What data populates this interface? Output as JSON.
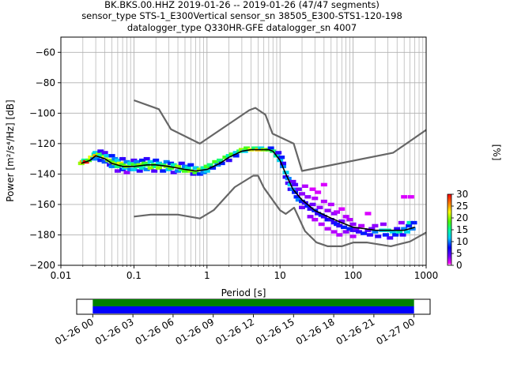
{
  "figure": {
    "title_lines": [
      "BK.BKS.00.HHZ   2019-01-26 -- 2019-01-26  (47/47 segments)",
      "sensor_type STS-1_E300Vertical sensor_sn 38505_E300-STS1-120-198",
      "datalogger_type Q330HR-GFE datalogger_sn 4007"
    ]
  },
  "chart_data": [
    {
      "type": "heatmap",
      "subtype": "probabilistic-power-spectral-density",
      "xlabel": "Period [s]",
      "ylabel": "Power [m²/s⁴/Hz] [dB]",
      "xscale": "log",
      "xlim": [
        0.01,
        1000
      ],
      "ylim": [
        -200,
        -50
      ],
      "x_ticks": [
        0.01,
        0.1,
        1,
        10,
        100,
        1000
      ],
      "x_tick_labels": [
        "0.01",
        "0.1",
        "1",
        "10",
        "100",
        "1000"
      ],
      "y_ticks": [
        -200,
        -180,
        -160,
        -140,
        -120,
        -100,
        -80,
        -60
      ],
      "y_tick_labels": [
        "−200",
        "−180",
        "−160",
        "−140",
        "−120",
        "−100",
        "−80",
        "−60"
      ],
      "grid": true,
      "colorbar": {
        "label": "[%]",
        "min": 0,
        "max": 30,
        "ticks": [
          0,
          5,
          10,
          15,
          20,
          25,
          30
        ],
        "colormap": "pqlx",
        "position": "right"
      },
      "series": [
        {
          "role": "mean",
          "color": "#000000",
          "x": [
            0.019,
            0.025,
            0.03,
            0.04,
            0.05,
            0.07,
            0.1,
            0.15,
            0.2,
            0.3,
            0.5,
            0.7,
            1,
            1.5,
            2,
            3,
            4,
            5,
            6,
            7,
            8,
            10,
            12,
            15,
            20,
            30,
            50,
            70,
            100,
            150,
            200,
            300,
            500,
            700
          ],
          "y": [
            -133,
            -131,
            -128,
            -130,
            -133,
            -135,
            -135,
            -134,
            -134,
            -135,
            -137,
            -138,
            -137,
            -133,
            -129,
            -125,
            -124,
            -124,
            -124,
            -124,
            -125,
            -131,
            -140,
            -150,
            -157,
            -164,
            -169,
            -172,
            -175,
            -176,
            -177,
            -177,
            -177,
            -175
          ]
        },
        {
          "role": "noise-model-high",
          "color": "#666666",
          "x": [
            0.1,
            0.22,
            0.32,
            0.8,
            3.8,
            4.6,
            6.3,
            7.9,
            15.4,
            20,
            354.8,
            1000
          ],
          "y": [
            -91.5,
            -97.4,
            -110.5,
            -120,
            -98,
            -96.5,
            -101,
            -113.5,
            -120,
            -138,
            -126,
            -111
          ]
        },
        {
          "role": "noise-model-low",
          "color": "#666666",
          "x": [
            0.1,
            0.17,
            0.4,
            0.8,
            1.24,
            2.4,
            4.3,
            5,
            6,
            10,
            12,
            15.6,
            21.9,
            31.6,
            45,
            70,
            101,
            154,
            328,
            600,
            1000
          ],
          "y": [
            -168,
            -166.7,
            -166.7,
            -169.2,
            -163.7,
            -148.6,
            -141.1,
            -141.1,
            -149,
            -163.8,
            -166.2,
            -162.1,
            -177.5,
            -185,
            -187.5,
            -187.5,
            -185,
            -185,
            -187.5,
            -184.4,
            -178.4
          ]
        }
      ],
      "density_cells": [
        [
          0.019,
          -133,
          20
        ],
        [
          0.02,
          -132,
          25
        ],
        [
          0.021,
          -131,
          15
        ],
        [
          0.022,
          -132,
          30
        ],
        [
          0.024,
          -131,
          18
        ],
        [
          0.026,
          -129,
          22
        ],
        [
          0.028,
          -130,
          10
        ],
        [
          0.029,
          -127,
          15
        ],
        [
          0.03,
          -126,
          12
        ],
        [
          0.03,
          -128,
          25
        ],
        [
          0.031,
          -130,
          10
        ],
        [
          0.033,
          -127,
          20
        ],
        [
          0.035,
          -125,
          6
        ],
        [
          0.035,
          -128,
          14
        ],
        [
          0.035,
          -131,
          8
        ],
        [
          0.038,
          -127,
          16
        ],
        [
          0.04,
          -126,
          5
        ],
        [
          0.04,
          -129,
          22
        ],
        [
          0.04,
          -132,
          9
        ],
        [
          0.043,
          -128,
          12
        ],
        [
          0.045,
          -131,
          20
        ],
        [
          0.047,
          -134,
          6
        ],
        [
          0.05,
          -128,
          8
        ],
        [
          0.05,
          -132,
          18
        ],
        [
          0.05,
          -135,
          10
        ],
        [
          0.055,
          -130,
          10
        ],
        [
          0.055,
          -133,
          20
        ],
        [
          0.06,
          -131,
          12
        ],
        [
          0.06,
          -135,
          16
        ],
        [
          0.06,
          -138,
          4
        ],
        [
          0.065,
          -133,
          22
        ],
        [
          0.07,
          -130,
          6
        ],
        [
          0.07,
          -134,
          18
        ],
        [
          0.07,
          -137,
          8
        ],
        [
          0.075,
          -136,
          12
        ],
        [
          0.08,
          -132,
          10
        ],
        [
          0.08,
          -135,
          20
        ],
        [
          0.08,
          -139,
          3
        ],
        [
          0.09,
          -133,
          14
        ],
        [
          0.09,
          -137,
          10
        ],
        [
          0.1,
          -131,
          5
        ],
        [
          0.1,
          -134,
          18
        ],
        [
          0.1,
          -137,
          12
        ],
        [
          0.11,
          -132,
          10
        ],
        [
          0.11,
          -135,
          16
        ],
        [
          0.12,
          -134,
          20
        ],
        [
          0.12,
          -138,
          6
        ],
        [
          0.13,
          -131,
          8
        ],
        [
          0.13,
          -136,
          14
        ],
        [
          0.14,
          -133,
          18
        ],
        [
          0.15,
          -130,
          6
        ],
        [
          0.15,
          -134,
          16
        ],
        [
          0.15,
          -137,
          10
        ],
        [
          0.17,
          -132,
          12
        ],
        [
          0.17,
          -136,
          20
        ],
        [
          0.19,
          -134,
          18
        ],
        [
          0.19,
          -138,
          5
        ],
        [
          0.2,
          -131,
          8
        ],
        [
          0.2,
          -135,
          15
        ],
        [
          0.22,
          -133,
          12
        ],
        [
          0.22,
          -136,
          20
        ],
        [
          0.25,
          -134,
          16
        ],
        [
          0.25,
          -138,
          8
        ],
        [
          0.28,
          -132,
          10
        ],
        [
          0.28,
          -135,
          20
        ],
        [
          0.3,
          -137,
          12
        ],
        [
          0.32,
          -133,
          8
        ],
        [
          0.32,
          -136,
          18
        ],
        [
          0.35,
          -134,
          14
        ],
        [
          0.35,
          -139,
          5
        ],
        [
          0.4,
          -135,
          20
        ],
        [
          0.4,
          -138,
          10
        ],
        [
          0.45,
          -133,
          6
        ],
        [
          0.45,
          -137,
          16
        ],
        [
          0.5,
          -135,
          10
        ],
        [
          0.5,
          -138,
          18
        ],
        [
          0.55,
          -136,
          14
        ],
        [
          0.6,
          -134,
          8
        ],
        [
          0.6,
          -138,
          20
        ],
        [
          0.65,
          -140,
          6
        ],
        [
          0.7,
          -136,
          12
        ],
        [
          0.7,
          -139,
          18
        ],
        [
          0.8,
          -137,
          20
        ],
        [
          0.8,
          -140,
          8
        ],
        [
          0.9,
          -136,
          14
        ],
        [
          0.9,
          -139,
          10
        ],
        [
          1.0,
          -135,
          18
        ],
        [
          1.0,
          -138,
          12
        ],
        [
          1.1,
          -134,
          16
        ],
        [
          1.2,
          -136,
          8
        ],
        [
          1.3,
          -132,
          18
        ],
        [
          1.4,
          -134,
          10
        ],
        [
          1.5,
          -131,
          16
        ],
        [
          1.6,
          -133,
          8
        ],
        [
          1.8,
          -129,
          18
        ],
        [
          2.0,
          -128,
          14
        ],
        [
          2.0,
          -131,
          6
        ],
        [
          2.2,
          -127,
          18
        ],
        [
          2.5,
          -126,
          12
        ],
        [
          2.5,
          -128,
          8
        ],
        [
          2.8,
          -125,
          16
        ],
        [
          3.0,
          -124,
          20
        ],
        [
          3.3,
          -125,
          12
        ],
        [
          3.5,
          -123,
          18
        ],
        [
          4.0,
          -124,
          22
        ],
        [
          4.5,
          -123,
          16
        ],
        [
          5.0,
          -124,
          24
        ],
        [
          5.5,
          -123,
          12
        ],
        [
          6.0,
          -124,
          20
        ],
        [
          7.0,
          -124,
          18
        ],
        [
          7.5,
          -123,
          8
        ],
        [
          8.0,
          -125,
          16
        ],
        [
          9.0,
          -128,
          14
        ],
        [
          9.5,
          -126,
          6
        ],
        [
          10.0,
          -131,
          12
        ],
        [
          10.5,
          -129,
          8
        ],
        [
          11.0,
          -135,
          10
        ],
        [
          11.0,
          -133,
          6
        ],
        [
          12.0,
          -139,
          12
        ],
        [
          12.0,
          -142,
          6
        ],
        [
          13.0,
          -143,
          10
        ],
        [
          13.0,
          -146,
          5
        ],
        [
          14.0,
          -147,
          12
        ],
        [
          14.0,
          -150,
          6
        ],
        [
          15.0,
          -150,
          10
        ],
        [
          15.0,
          -145,
          4
        ],
        [
          16.0,
          -152,
          8
        ],
        [
          16.0,
          -147,
          5
        ],
        [
          17.0,
          -155,
          8
        ],
        [
          18.0,
          -150,
          4
        ],
        [
          18.0,
          -157,
          10
        ],
        [
          20.0,
          -158,
          8
        ],
        [
          20.0,
          -153,
          3
        ],
        [
          20.0,
          -162,
          4
        ],
        [
          22.0,
          -159,
          6
        ],
        [
          22.0,
          -148,
          2
        ],
        [
          24.0,
          -161,
          8
        ],
        [
          24.0,
          -155,
          3
        ],
        [
          26.0,
          -163,
          6
        ],
        [
          26.0,
          -168,
          3
        ],
        [
          28.0,
          -150,
          1
        ],
        [
          28.0,
          -160,
          4
        ],
        [
          30.0,
          -164,
          8
        ],
        [
          30.0,
          -156,
          2
        ],
        [
          30.0,
          -170,
          2
        ],
        [
          33.0,
          -166,
          6
        ],
        [
          33.0,
          -152,
          1
        ],
        [
          35.0,
          -162,
          3
        ],
        [
          37.0,
          -167,
          8
        ],
        [
          37.0,
          -173,
          2
        ],
        [
          40.0,
          -168,
          6
        ],
        [
          40.0,
          -158,
          2
        ],
        [
          40.0,
          -147,
          1
        ],
        [
          45.0,
          -170,
          7
        ],
        [
          45.0,
          -164,
          3
        ],
        [
          45.0,
          -176,
          2
        ],
        [
          50.0,
          -170,
          6
        ],
        [
          50.0,
          -160,
          2
        ],
        [
          55.0,
          -172,
          6
        ],
        [
          55.0,
          -166,
          3
        ],
        [
          55.0,
          -178,
          2
        ],
        [
          60.0,
          -173,
          8
        ],
        [
          60.0,
          -165,
          2
        ],
        [
          65.0,
          -174,
          6
        ],
        [
          65.0,
          -180,
          2
        ],
        [
          70.0,
          -171,
          4
        ],
        [
          70.0,
          -163,
          1
        ],
        [
          75.0,
          -175,
          8
        ],
        [
          80.0,
          -168,
          2
        ],
        [
          80.0,
          -178,
          3
        ],
        [
          90.0,
          -176,
          8
        ],
        [
          90.0,
          -170,
          2
        ],
        [
          100.0,
          -177,
          6
        ],
        [
          100.0,
          -173,
          3
        ],
        [
          100.0,
          -181,
          2
        ],
        [
          110.0,
          -176,
          4
        ],
        [
          120.0,
          -178,
          6
        ],
        [
          130.0,
          -174,
          2
        ],
        [
          140.0,
          -179,
          8
        ],
        [
          160.0,
          -177,
          5
        ],
        [
          160.0,
          -166,
          1
        ],
        [
          170.0,
          -180,
          6
        ],
        [
          180.0,
          -176,
          4
        ],
        [
          200.0,
          -178,
          10
        ],
        [
          200.0,
          -174,
          3
        ],
        [
          220.0,
          -181,
          6
        ],
        [
          250.0,
          -177,
          12
        ],
        [
          260.0,
          -173,
          3
        ],
        [
          280.0,
          -180,
          8
        ],
        [
          300.0,
          -177,
          14
        ],
        [
          320.0,
          -182,
          5
        ],
        [
          350.0,
          -178,
          12
        ],
        [
          380.0,
          -180,
          8
        ],
        [
          400.0,
          -176,
          6
        ],
        [
          430.0,
          -178,
          14
        ],
        [
          460.0,
          -172,
          3
        ],
        [
          480.0,
          -180,
          6
        ],
        [
          500.0,
          -176,
          10
        ],
        [
          500.0,
          -155,
          1
        ],
        [
          550.0,
          -178,
          12
        ],
        [
          580.0,
          -174,
          8
        ],
        [
          600.0,
          -172,
          14
        ],
        [
          620.0,
          -155,
          1
        ],
        [
          650.0,
          -176,
          10
        ],
        [
          680.0,
          -172,
          8
        ]
      ]
    },
    {
      "type": "bar",
      "subtype": "data-coverage-timeline",
      "x_tick_labels": [
        "01-26 00",
        "01-26 03",
        "01-26 06",
        "01-26 09",
        "01-26 12",
        "01-26 15",
        "01-26 18",
        "01-26 21",
        "01-27 00"
      ],
      "xlim_hours": [
        -1.2,
        25.2
      ],
      "bands": [
        {
          "row": "upper",
          "start_hour": 0,
          "end_hour": 24,
          "color": "#008000"
        },
        {
          "row": "lower",
          "start_hour": 0,
          "end_hour": 24,
          "color": "#0000ff"
        }
      ]
    }
  ]
}
